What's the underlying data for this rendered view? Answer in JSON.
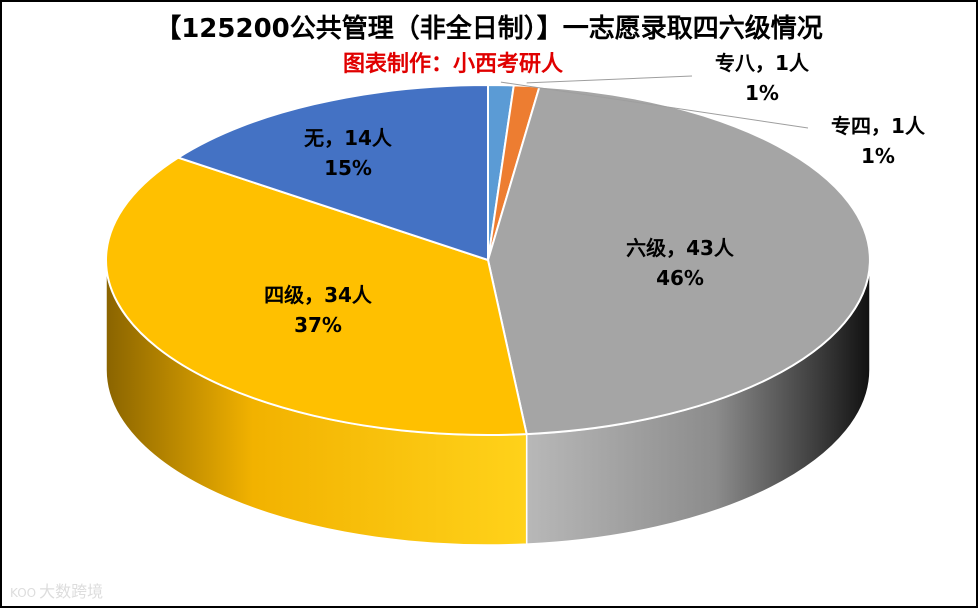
{
  "title": "【125200公共管理（非全日制）】一志愿录取四六级情况",
  "subtitle": "图表制作：小西考研人",
  "watermark": "大数跨境",
  "watermark_logo": "KOO",
  "chart_data": {
    "type": "pie",
    "style": "3d",
    "title": "【125200公共管理（非全日制）】一志愿录取四六级情况",
    "slices": [
      {
        "name": "专四",
        "value": 1,
        "percent": "1%",
        "color": "#5b9bd5",
        "label_line1": "专四，1人",
        "label_line2": "1%"
      },
      {
        "name": "专八",
        "value": 1,
        "percent": "1%",
        "color": "#ed7d31",
        "label_line1": "专八，1人",
        "label_line2": "1%"
      },
      {
        "name": "六级",
        "value": 43,
        "percent": "46%",
        "color": "#a5a5a5",
        "label_line1": "六级，43人",
        "label_line2": "46%"
      },
      {
        "name": "四级",
        "value": 34,
        "percent": "37%",
        "color": "#ffc000",
        "label_line1": "四级，34人",
        "label_line2": "37%"
      },
      {
        "name": "无",
        "value": 14,
        "percent": "15%",
        "color": "#4472c4",
        "label_line1": "无，14人",
        "label_line2": "15%"
      }
    ]
  }
}
